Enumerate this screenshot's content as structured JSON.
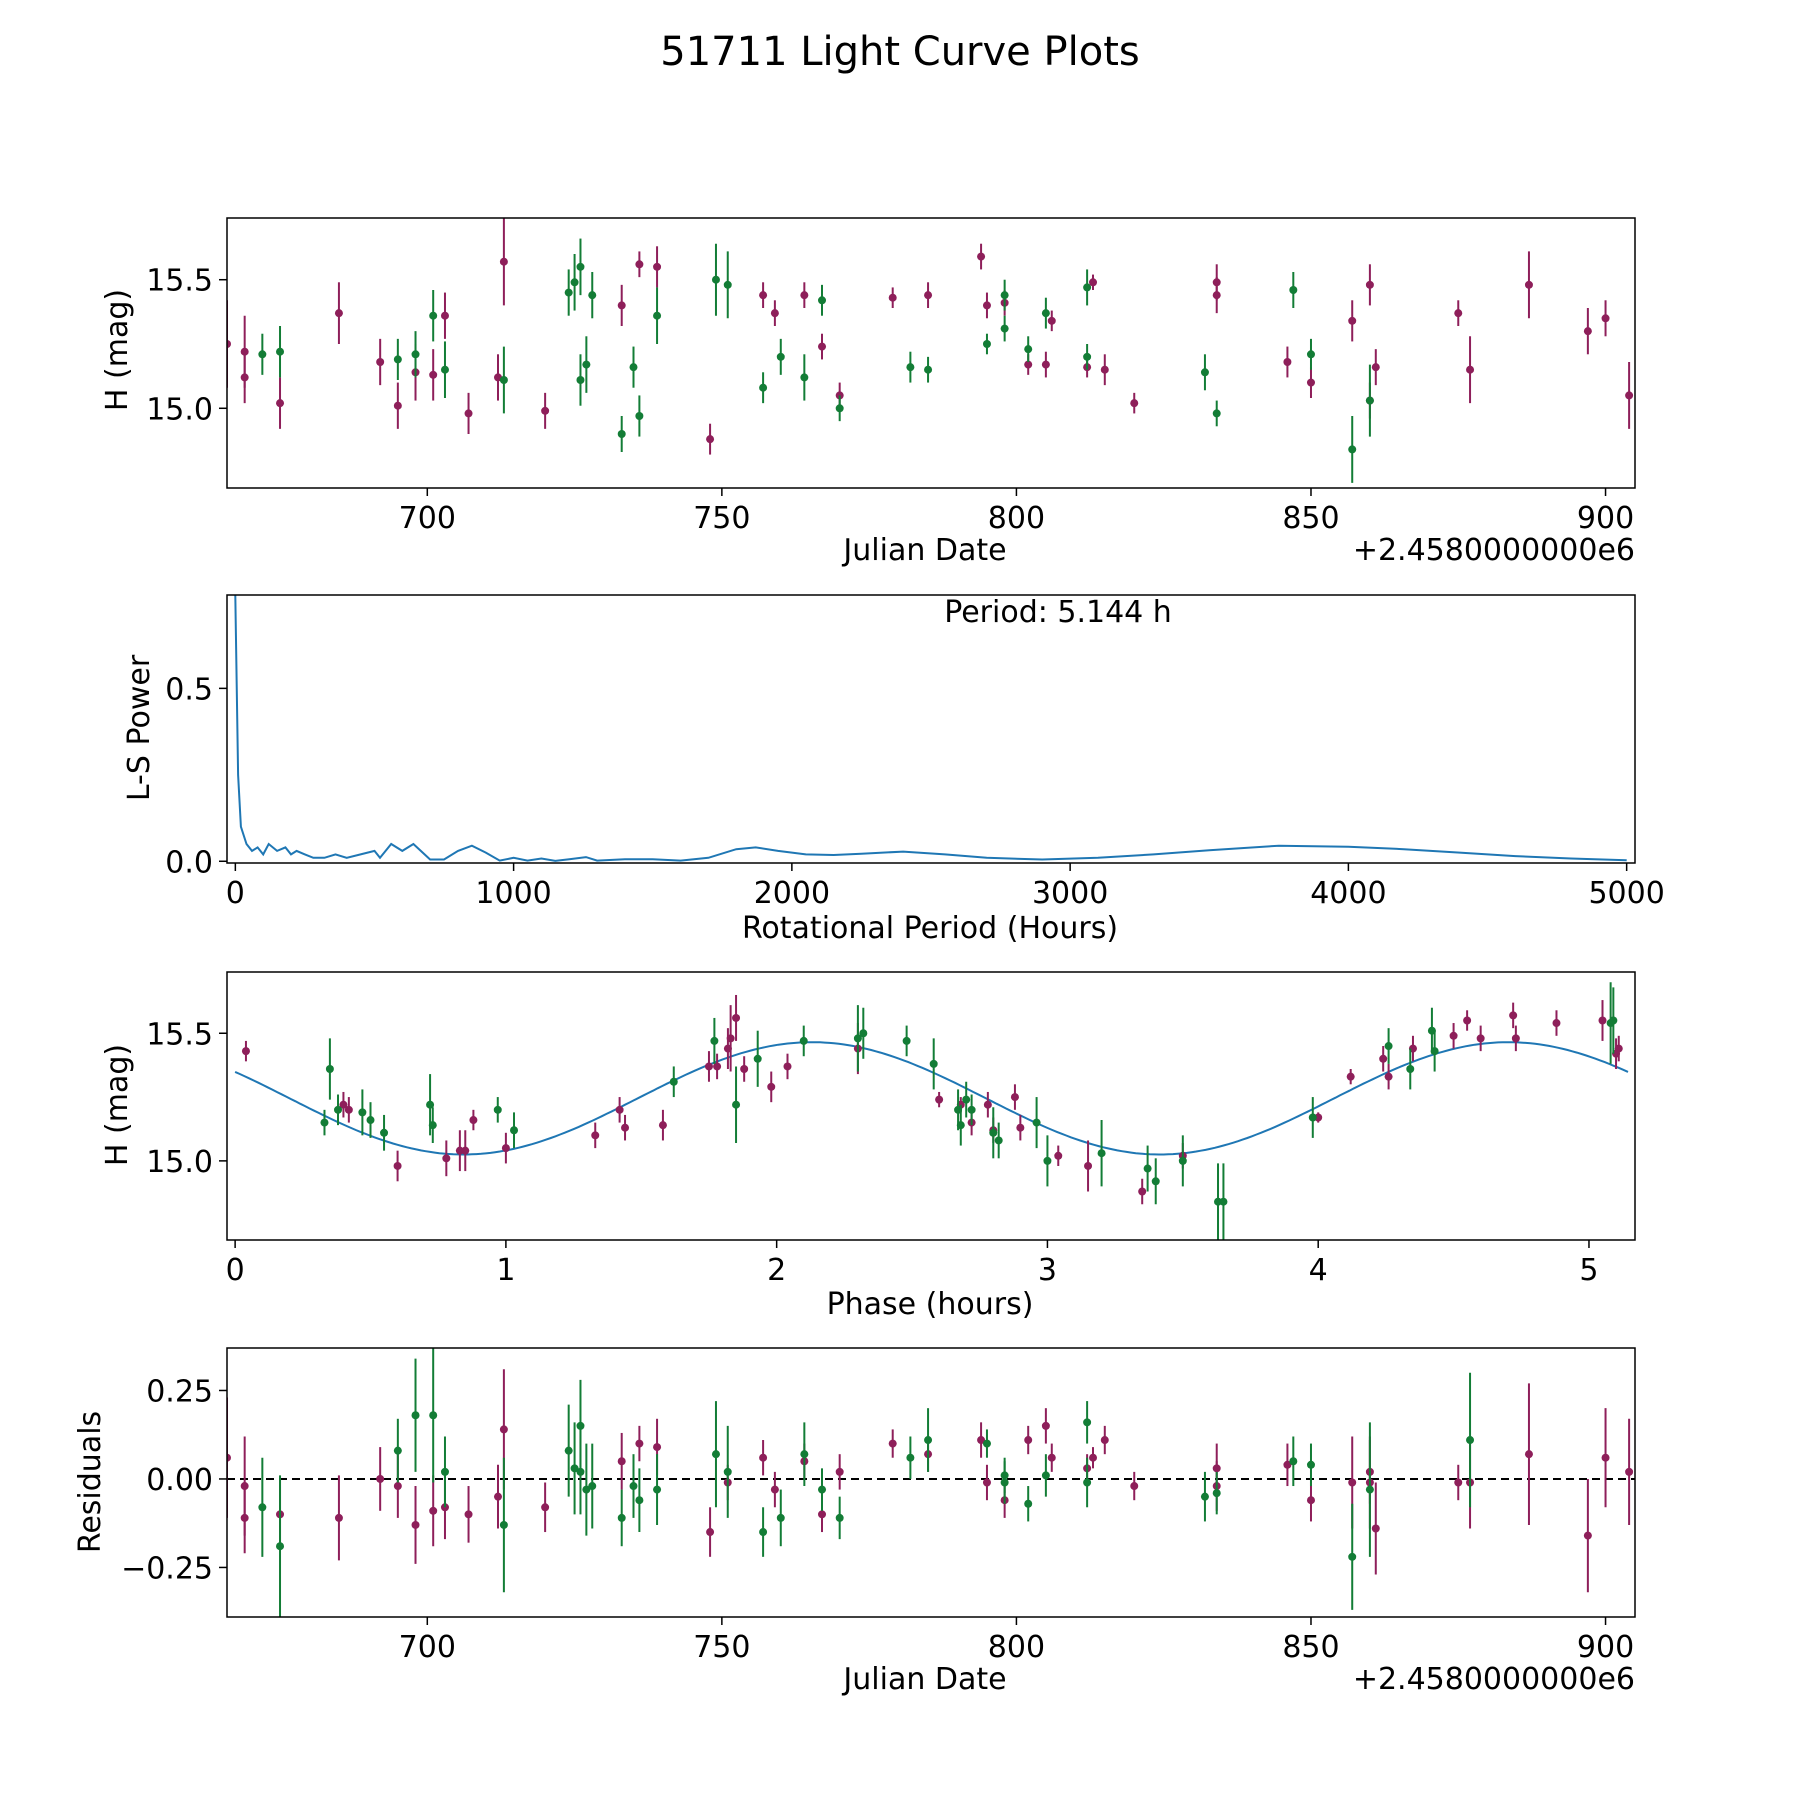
{
  "figure_title": "51711 Light Curve Plots",
  "colors": {
    "series_a": "#8e1f5a",
    "series_b": "#137d36",
    "fit": "#1f77b4",
    "zero_line": "#000000"
  },
  "chart_data": [
    {
      "id": "lightcurve",
      "type": "scatter",
      "xlabel": "Julian Date",
      "ylabel": "H (mag)",
      "offset_text": "+2.4580000000e6",
      "xlim": [
        666,
        905
      ],
      "ylim": [
        14.69,
        15.74
      ],
      "xticks": [
        700,
        750,
        800,
        850,
        900
      ],
      "yticks": [
        15.0,
        15.5
      ],
      "ytick_labels": [
        "15.0",
        "15.5"
      ],
      "series": [
        {
          "name": "red",
          "color_key": "series_a",
          "x": [
            666,
            669,
            669,
            675,
            685,
            692,
            695,
            698,
            701,
            703,
            707,
            712,
            713,
            720,
            733,
            736,
            739,
            748,
            757,
            759,
            764,
            767,
            770,
            779,
            785,
            794,
            795,
            798,
            802,
            805,
            806,
            812,
            813,
            815,
            820,
            834,
            834,
            846,
            850,
            857,
            860,
            860,
            861,
            875,
            877,
            887,
            897,
            900,
            904
          ],
          "y": [
            15.25,
            15.22,
            15.12,
            15.02,
            15.37,
            15.18,
            15.01,
            15.14,
            15.13,
            15.36,
            14.98,
            15.12,
            15.57,
            14.99,
            15.4,
            15.56,
            15.55,
            14.88,
            15.44,
            15.37,
            15.44,
            15.24,
            15.05,
            15.43,
            15.44,
            15.59,
            15.4,
            15.41,
            15.17,
            15.17,
            15.34,
            15.16,
            15.49,
            15.15,
            15.02,
            15.49,
            15.44,
            15.18,
            15.1,
            15.34,
            15.48,
            15.03,
            15.16,
            15.37,
            15.15,
            15.48,
            15.3,
            15.35,
            15.05
          ],
          "err": [
            0.17,
            0.14,
            0.1,
            0.1,
            0.12,
            0.09,
            0.09,
            0.11,
            0.1,
            0.09,
            0.08,
            0.09,
            0.17,
            0.07,
            0.08,
            0.05,
            0.08,
            0.06,
            0.05,
            0.05,
            0.05,
            0.05,
            0.05,
            0.04,
            0.05,
            0.05,
            0.05,
            0.05,
            0.04,
            0.05,
            0.04,
            0.04,
            0.03,
            0.06,
            0.04,
            0.07,
            0.07,
            0.06,
            0.06,
            0.08,
            0.08,
            0.07,
            0.07,
            0.05,
            0.13,
            0.13,
            0.09,
            0.07,
            0.13
          ]
        },
        {
          "name": "green",
          "color_key": "series_b",
          "x": [
            672,
            675,
            695,
            698,
            701,
            703,
            713,
            724,
            725,
            726,
            726,
            727,
            728,
            733,
            735,
            736,
            739,
            749,
            751,
            757,
            760,
            764,
            767,
            770,
            782,
            785,
            795,
            798,
            798,
            802,
            805,
            812,
            812,
            832,
            834,
            847,
            850,
            857,
            860
          ],
          "y": [
            15.21,
            15.22,
            15.19,
            15.21,
            15.36,
            15.15,
            15.11,
            15.45,
            15.49,
            15.11,
            15.55,
            15.17,
            15.44,
            14.9,
            15.16,
            14.97,
            15.36,
            15.5,
            15.48,
            15.08,
            15.2,
            15.12,
            15.42,
            15.0,
            15.16,
            15.15,
            15.25,
            15.31,
            15.44,
            15.23,
            15.37,
            15.2,
            15.47,
            15.14,
            14.98,
            15.46,
            15.21,
            14.84,
            15.03
          ],
          "err": [
            0.08,
            0.1,
            0.08,
            0.09,
            0.1,
            0.11,
            0.13,
            0.09,
            0.11,
            0.1,
            0.11,
            0.11,
            0.09,
            0.07,
            0.08,
            0.08,
            0.11,
            0.14,
            0.13,
            0.06,
            0.07,
            0.09,
            0.06,
            0.05,
            0.06,
            0.05,
            0.04,
            0.05,
            0.06,
            0.05,
            0.06,
            0.05,
            0.07,
            0.07,
            0.05,
            0.07,
            0.06,
            0.13,
            0.14
          ]
        }
      ]
    },
    {
      "id": "periodogram",
      "type": "line",
      "annotation": "Period: 5.144 h",
      "xlabel": "Rotational Period (Hours)",
      "ylabel": "L-S Power",
      "xlim": [
        -30,
        5030
      ],
      "ylim": [
        -0.005,
        0.77
      ],
      "xticks": [
        0,
        1000,
        2000,
        3000,
        4000,
        5000
      ],
      "yticks": [
        0.0,
        0.5
      ],
      "ytick_labels": [
        "0.0",
        "0.5"
      ],
      "color_key": "fit",
      "x": [
        0,
        10,
        20,
        40,
        60,
        80,
        100,
        120,
        150,
        180,
        200,
        220,
        250,
        280,
        320,
        360,
        400,
        450,
        500,
        520,
        560,
        600,
        640,
        680,
        700,
        750,
        800,
        850,
        900,
        950,
        1000,
        1050,
        1100,
        1150,
        1200,
        1260,
        1300,
        1400,
        1500,
        1600,
        1700,
        1800,
        1870,
        1950,
        2050,
        2150,
        2250,
        2400,
        2550,
        2700,
        2900,
        3100,
        3300,
        3500,
        3750,
        4000,
        4200,
        4400,
        4600,
        4800,
        5000
      ],
      "y": [
        0.77,
        0.25,
        0.1,
        0.05,
        0.03,
        0.04,
        0.02,
        0.05,
        0.03,
        0.04,
        0.02,
        0.03,
        0.02,
        0.01,
        0.01,
        0.02,
        0.01,
        0.02,
        0.03,
        0.01,
        0.05,
        0.03,
        0.05,
        0.02,
        0.005,
        0.005,
        0.03,
        0.045,
        0.025,
        0.002,
        0.01,
        0.002,
        0.008,
        0.001,
        0.006,
        0.012,
        0.002,
        0.006,
        0.006,
        0.002,
        0.01,
        0.035,
        0.04,
        0.03,
        0.02,
        0.018,
        0.022,
        0.028,
        0.02,
        0.01,
        0.005,
        0.01,
        0.02,
        0.032,
        0.045,
        0.042,
        0.035,
        0.025,
        0.015,
        0.008,
        0.003
      ]
    },
    {
      "id": "phase",
      "type": "scatter",
      "xlabel": "Phase (hours)",
      "ylabel": "H (mag)",
      "xlim": [
        -0.03,
        5.17
      ],
      "ylim": [
        14.69,
        15.74
      ],
      "xticks": [
        0,
        1,
        2,
        3,
        4,
        5
      ],
      "yticks": [
        15.0,
        15.5
      ],
      "ytick_labels": [
        "15.0",
        "15.5"
      ],
      "fit": {
        "color_key": "fit",
        "mean": 15.245,
        "amplitude": 0.22,
        "period": 2.572,
        "phase_of_max": 2.13,
        "xrange": [
          0,
          5.144
        ]
      },
      "series": [
        {
          "name": "red",
          "color_key": "series_a",
          "x": [
            0.04,
            0.4,
            0.42,
            0.6,
            0.78,
            0.83,
            0.85,
            0.88,
            1.0,
            1.33,
            1.42,
            1.44,
            1.58,
            1.75,
            1.78,
            1.82,
            1.83,
            1.85,
            1.88,
            1.98,
            2.04,
            2.3,
            2.6,
            2.68,
            2.72,
            2.78,
            2.8,
            2.88,
            2.9,
            3.04,
            3.15,
            3.35,
            3.5,
            4.0,
            4.12,
            4.24,
            4.26,
            4.35,
            4.5,
            4.55,
            4.6,
            4.72,
            4.73,
            4.88,
            5.05,
            5.1,
            5.11
          ],
          "y": [
            15.43,
            15.22,
            15.2,
            14.98,
            15.01,
            15.04,
            15.04,
            15.16,
            15.05,
            15.1,
            15.2,
            15.13,
            15.14,
            15.37,
            15.37,
            15.44,
            15.48,
            15.56,
            15.36,
            15.29,
            15.37,
            15.44,
            15.24,
            15.22,
            15.15,
            15.22,
            15.12,
            15.25,
            15.13,
            15.02,
            14.98,
            14.88,
            15.02,
            15.17,
            15.33,
            15.4,
            15.33,
            15.44,
            15.49,
            15.55,
            15.48,
            15.57,
            15.48,
            15.54,
            15.55,
            15.42,
            15.44
          ],
          "err": [
            0.04,
            0.05,
            0.05,
            0.06,
            0.07,
            0.08,
            0.08,
            0.04,
            0.06,
            0.05,
            0.05,
            0.05,
            0.06,
            0.06,
            0.05,
            0.08,
            0.13,
            0.09,
            0.05,
            0.06,
            0.05,
            0.1,
            0.03,
            0.03,
            0.05,
            0.05,
            0.05,
            0.05,
            0.05,
            0.04,
            0.1,
            0.05,
            0.05,
            0.02,
            0.03,
            0.05,
            0.05,
            0.05,
            0.05,
            0.04,
            0.05,
            0.05,
            0.05,
            0.05,
            0.08,
            0.06,
            0.05
          ]
        },
        {
          "name": "green",
          "color_key": "series_b",
          "x": [
            0.33,
            0.35,
            0.38,
            0.47,
            0.5,
            0.55,
            0.72,
            0.73,
            0.97,
            1.03,
            1.62,
            1.77,
            1.85,
            1.93,
            2.1,
            2.3,
            2.32,
            2.48,
            2.58,
            2.67,
            2.68,
            2.7,
            2.72,
            2.8,
            2.82,
            2.96,
            3.0,
            3.2,
            3.37,
            3.4,
            3.5,
            3.63,
            3.65,
            3.98,
            4.26,
            4.34,
            4.42,
            4.43,
            5.08,
            5.09
          ],
          "y": [
            15.15,
            15.36,
            15.2,
            15.19,
            15.16,
            15.11,
            15.22,
            15.14,
            15.2,
            15.12,
            15.31,
            15.47,
            15.22,
            15.4,
            15.47,
            15.48,
            15.5,
            15.47,
            15.38,
            15.2,
            15.14,
            15.24,
            15.2,
            15.11,
            15.08,
            15.15,
            15.0,
            15.03,
            14.97,
            14.92,
            15.0,
            14.84,
            14.84,
            15.17,
            15.45,
            15.36,
            15.51,
            15.43,
            15.54,
            15.55
          ],
          "err": [
            0.05,
            0.12,
            0.06,
            0.09,
            0.07,
            0.07,
            0.12,
            0.07,
            0.05,
            0.07,
            0.06,
            0.09,
            0.15,
            0.11,
            0.06,
            0.13,
            0.1,
            0.06,
            0.1,
            0.08,
            0.08,
            0.07,
            0.06,
            0.1,
            0.07,
            0.1,
            0.1,
            0.13,
            0.09,
            0.09,
            0.1,
            0.15,
            0.15,
            0.08,
            0.07,
            0.08,
            0.09,
            0.08,
            0.16,
            0.13
          ]
        }
      ]
    },
    {
      "id": "residuals",
      "type": "scatter",
      "xlabel": "Julian Date",
      "ylabel": "Residuals",
      "offset_text": "+2.4580000000e6",
      "xlim": [
        666,
        905
      ],
      "ylim": [
        -0.39,
        0.37
      ],
      "xticks": [
        700,
        750,
        800,
        850,
        900
      ],
      "yticks": [
        0.25,
        0.0,
        -0.25
      ],
      "ytick_labels": [
        "0.25",
        "0.00",
        "−0.25"
      ],
      "zero_line": true,
      "series": [
        {
          "name": "red",
          "color_key": "series_a",
          "x": [
            666,
            669,
            669,
            675,
            685,
            692,
            695,
            698,
            701,
            703,
            707,
            712,
            713,
            720,
            733,
            736,
            739,
            748,
            751,
            757,
            759,
            764,
            767,
            770,
            779,
            785,
            794,
            795,
            798,
            802,
            805,
            806,
            812,
            813,
            815,
            820,
            834,
            834,
            846,
            850,
            857,
            860,
            860,
            861,
            875,
            877,
            887,
            897,
            900,
            904
          ],
          "y": [
            0.06,
            -0.02,
            -0.11,
            -0.1,
            -0.11,
            0.0,
            -0.02,
            -0.13,
            -0.09,
            -0.08,
            -0.1,
            -0.05,
            0.14,
            -0.08,
            0.05,
            0.1,
            0.09,
            -0.15,
            -0.01,
            0.06,
            -0.03,
            0.05,
            -0.1,
            0.02,
            0.1,
            0.07,
            0.11,
            -0.01,
            -0.06,
            0.11,
            0.15,
            0.06,
            0.03,
            0.06,
            0.11,
            -0.02,
            0.03,
            -0.02,
            0.04,
            -0.06,
            -0.01,
            -0.01,
            0.02,
            -0.14,
            -0.01,
            -0.01,
            0.07,
            -0.16,
            0.06,
            0.02
          ],
          "err": [
            0.17,
            0.14,
            0.1,
            0.1,
            0.12,
            0.09,
            0.09,
            0.11,
            0.1,
            0.09,
            0.08,
            0.09,
            0.17,
            0.07,
            0.08,
            0.05,
            0.08,
            0.07,
            0.05,
            0.05,
            0.05,
            0.05,
            0.05,
            0.05,
            0.04,
            0.05,
            0.05,
            0.05,
            0.05,
            0.04,
            0.05,
            0.04,
            0.04,
            0.03,
            0.04,
            0.04,
            0.07,
            0.07,
            0.06,
            0.06,
            0.13,
            0.13,
            0.09,
            0.13,
            0.05,
            0.13,
            0.2,
            0.16,
            0.14,
            0.15
          ]
        },
        {
          "name": "green",
          "color_key": "series_b",
          "x": [
            672,
            675,
            695,
            698,
            701,
            703,
            713,
            724,
            725,
            726,
            726,
            727,
            728,
            733,
            735,
            736,
            739,
            749,
            751,
            757,
            760,
            764,
            767,
            770,
            782,
            785,
            795,
            798,
            798,
            802,
            805,
            812,
            812,
            832,
            834,
            847,
            850,
            857,
            860,
            877
          ],
          "y": [
            -0.08,
            -0.19,
            0.08,
            0.18,
            0.18,
            0.02,
            -0.13,
            0.08,
            0.03,
            0.02,
            0.15,
            -0.03,
            -0.02,
            -0.11,
            -0.02,
            -0.06,
            -0.03,
            0.07,
            0.02,
            -0.15,
            -0.11,
            0.07,
            -0.03,
            -0.11,
            0.06,
            0.11,
            0.1,
            0.01,
            -0.01,
            -0.07,
            0.01,
            0.16,
            -0.01,
            -0.05,
            -0.04,
            0.05,
            0.04,
            -0.22,
            -0.03,
            0.11
          ],
          "err": [
            0.14,
            0.2,
            0.09,
            0.16,
            0.19,
            0.1,
            0.19,
            0.13,
            0.13,
            0.12,
            0.13,
            0.13,
            0.12,
            0.08,
            0.09,
            0.09,
            0.1,
            0.15,
            0.13,
            0.07,
            0.08,
            0.09,
            0.06,
            0.06,
            0.06,
            0.09,
            0.04,
            0.05,
            0.06,
            0.05,
            0.06,
            0.06,
            0.07,
            0.07,
            0.06,
            0.07,
            0.06,
            0.15,
            0.19,
            0.19
          ]
        }
      ]
    }
  ]
}
